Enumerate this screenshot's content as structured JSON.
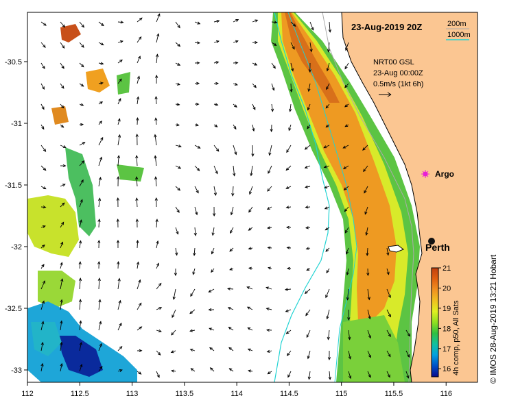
{
  "map": {
    "title": "23-Aug-2019 20Z",
    "contour_legend": {
      "shallow_label": "200m",
      "deep_label": "1000m",
      "shallow_color": "#aaaaaa",
      "deep_color": "#21d3d3"
    },
    "current_legend": {
      "line1": "NRT00 GSL",
      "line2": "23-Aug 00:00Z",
      "line3": "0.5m/s (1kt 6h)"
    },
    "places": [
      {
        "name": "Argo",
        "marker": "argo-float-marker",
        "marker_color": "#e81ed6"
      },
      {
        "name": "Perth",
        "marker": "city-dot-marker",
        "marker_color": "#111111"
      }
    ],
    "x_axis": {
      "ticks": [
        "112",
        "112.5",
        "113",
        "113.5",
        "114",
        "114.5",
        "115",
        "115.5",
        "116"
      ],
      "range": [
        112,
        116.3
      ]
    },
    "y_axis": {
      "ticks": [
        "-30.5",
        "-31",
        "-31.5",
        "-32",
        "-32.5",
        "-33"
      ],
      "range": [
        -33.1,
        -30.1
      ]
    },
    "colorbar": {
      "label": "4h comp, p50, All Sats",
      "ticks": [
        "21",
        "20",
        "19",
        "18",
        "17",
        "16"
      ],
      "range": [
        15.6,
        21
      ],
      "colors": [
        "#0a0a8c",
        "#0050c8",
        "#00a0e0",
        "#10c0a0",
        "#30c040",
        "#90e020",
        "#e0f020",
        "#f0c020",
        "#f09020",
        "#e06010",
        "#c04010"
      ]
    },
    "land_color": "#fbc692",
    "copyright": "© IMOS 28-Aug-2019 13:21 Hobart"
  }
}
